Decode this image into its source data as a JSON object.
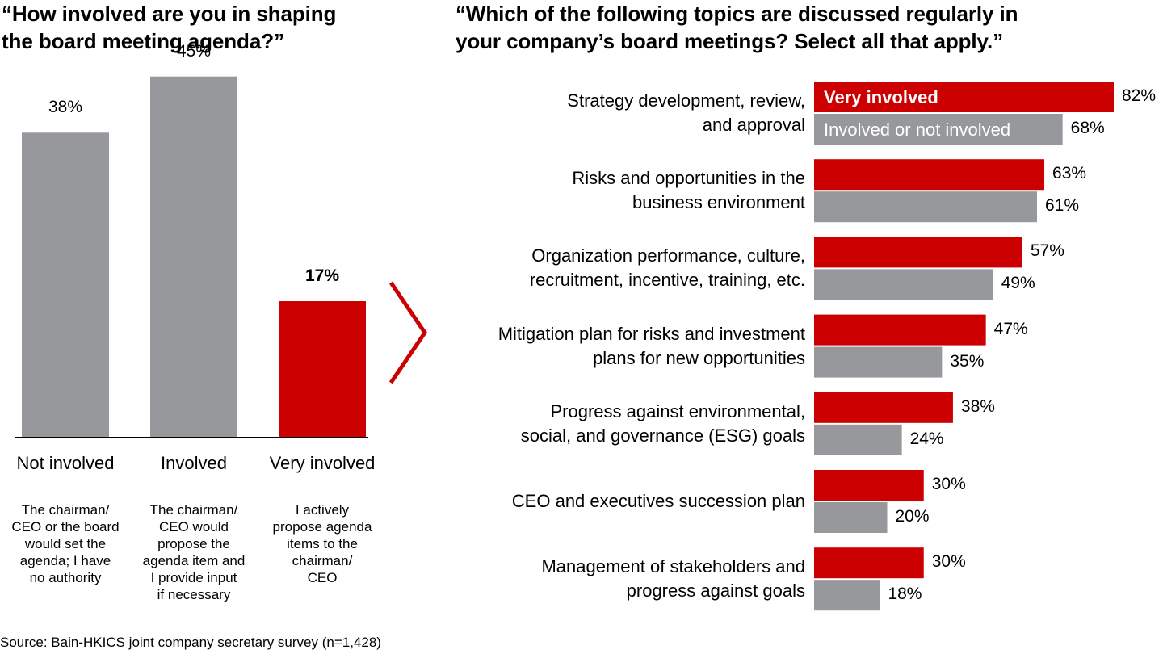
{
  "left_title_lines": [
    "“How involved are you in shaping",
    "the board meeting agenda?”"
  ],
  "right_title_lines": [
    "“Which of the following topics are discussed regularly in",
    "your company’s board meetings? Select all that apply.”"
  ],
  "colors": {
    "red": "#cc0000",
    "gray": "#97989c",
    "axis": "#000000"
  },
  "chart_data": [
    {
      "type": "bar",
      "title": "“How involved are you in shaping the board meeting agenda?”",
      "categories": [
        "Not involved",
        "Involved",
        "Very involved"
      ],
      "values": [
        38,
        45,
        17
      ],
      "value_labels": [
        "38%",
        "45%",
        "17%"
      ],
      "colors": [
        "#97989c",
        "#97989c",
        "#cc0000"
      ],
      "descriptions": [
        [
          "The chairman/",
          "CEO or the board",
          "would set the",
          "agenda; I have",
          "no authority"
        ],
        [
          "The chairman/",
          "CEO would",
          "propose the",
          "agenda item and",
          "I provide input",
          "if necessary"
        ],
        [
          "I actively",
          "propose agenda",
          "items to the",
          "chairman/",
          "CEO"
        ]
      ],
      "ylim": [
        0,
        50
      ],
      "grid": false
    },
    {
      "type": "bar",
      "orientation": "horizontal",
      "title": "“Which of the following topics are discussed regularly in your company’s board meetings? Select all that apply.”",
      "categories": [
        [
          "Strategy development, review,",
          "and approval"
        ],
        [
          "Risks and opportunities in the",
          "business environment"
        ],
        [
          "Organization performance, culture,",
          "recruitment, incentive, training, etc."
        ],
        [
          "Mitigation plan for risks and investment",
          "plans for new opportunities"
        ],
        [
          "Progress against environmental,",
          "social, and governance (ESG) goals"
        ],
        [
          "CEO and executives succession plan"
        ],
        [
          "Management of stakeholders and",
          "progress against goals"
        ]
      ],
      "series": [
        {
          "name": "Very involved",
          "color": "#cc0000",
          "values": [
            82,
            63,
            57,
            47,
            38,
            30,
            30
          ]
        },
        {
          "name": "Involved or not involved",
          "color": "#97989c",
          "values": [
            68,
            61,
            49,
            35,
            24,
            20,
            18
          ]
        }
      ],
      "xlim": [
        0,
        100
      ],
      "legend": "inside-first-bars",
      "grid": false
    }
  ],
  "source": "Source: Bain-HKICS joint company secretary survey (n=1,428)"
}
